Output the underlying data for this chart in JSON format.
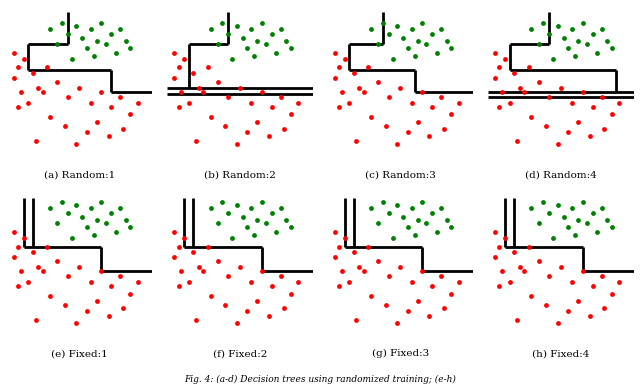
{
  "fig_width": 6.4,
  "fig_height": 3.88,
  "dpi": 100,
  "subtitles": [
    "(a) Random:1",
    "(b) Random:2",
    "(c) Random:3",
    "(d) Random:4",
    "(e) Fixed:1",
    "(f) Fixed:2",
    "(g) Fixed:3",
    "(h) Fixed:4"
  ],
  "caption": "Fig. 4: (a-d) Decision trees using randomized training; (e-h)",
  "lw": 2.0,
  "dot_size": 12,
  "green_x": [
    0.3,
    0.38,
    0.35,
    0.42,
    0.48,
    0.52,
    0.55,
    0.58,
    0.62,
    0.65,
    0.68,
    0.72,
    0.75,
    0.78,
    0.82,
    0.85,
    0.45,
    0.6
  ],
  "green_y": [
    0.88,
    0.92,
    0.78,
    0.85,
    0.9,
    0.82,
    0.75,
    0.88,
    0.8,
    0.92,
    0.78,
    0.85,
    0.72,
    0.88,
    0.8,
    0.75,
    0.68,
    0.7
  ],
  "red_x": [
    0.05,
    0.08,
    0.12,
    0.05,
    0.1,
    0.18,
    0.22,
    0.28,
    0.08,
    0.15,
    0.25,
    0.35,
    0.42,
    0.5,
    0.58,
    0.65,
    0.72,
    0.78,
    0.85,
    0.9,
    0.3,
    0.4,
    0.55,
    0.62,
    0.7,
    0.8,
    0.2,
    0.48
  ],
  "red_y": [
    0.72,
    0.62,
    0.68,
    0.55,
    0.45,
    0.58,
    0.48,
    0.62,
    0.35,
    0.38,
    0.45,
    0.52,
    0.42,
    0.48,
    0.38,
    0.45,
    0.35,
    0.42,
    0.3,
    0.38,
    0.28,
    0.22,
    0.18,
    0.25,
    0.15,
    0.2,
    0.12,
    0.1
  ],
  "boundary_a": {
    "segments": [
      [
        [
          0.42,
          0.42
        ],
        [
          1.0,
          0.78
        ]
      ],
      [
        [
          0.15,
          0.42
        ],
        [
          0.78,
          0.78
        ]
      ],
      [
        [
          0.15,
          0.15
        ],
        [
          0.78,
          0.6
        ]
      ],
      [
        [
          0.15,
          0.72
        ],
        [
          0.6,
          0.6
        ]
      ],
      [
        [
          0.72,
          0.72
        ],
        [
          0.6,
          0.45
        ]
      ],
      [
        [
          0.72,
          1.0
        ],
        [
          0.45,
          0.45
        ]
      ]
    ]
  },
  "boundary_b": {
    "segments": [
      [
        [
          0.42,
          0.42
        ],
        [
          1.0,
          0.78
        ]
      ],
      [
        [
          0.15,
          0.42
        ],
        [
          0.78,
          0.78
        ]
      ],
      [
        [
          0.15,
          0.15
        ],
        [
          0.78,
          0.48
        ]
      ],
      [
        [
          0.0,
          1.0
        ],
        [
          0.48,
          0.48
        ]
      ],
      [
        [
          0.0,
          1.0
        ],
        [
          0.44,
          0.44
        ]
      ]
    ]
  },
  "boundary_c": {
    "segments": [
      [
        [
          0.38,
          0.38
        ],
        [
          1.0,
          0.78
        ]
      ],
      [
        [
          0.15,
          0.38
        ],
        [
          0.78,
          0.78
        ]
      ],
      [
        [
          0.15,
          0.15
        ],
        [
          0.78,
          0.6
        ]
      ],
      [
        [
          0.15,
          0.6
        ],
        [
          0.6,
          0.6
        ]
      ],
      [
        [
          0.6,
          0.6
        ],
        [
          0.6,
          0.45
        ]
      ],
      [
        [
          0.6,
          1.0
        ],
        [
          0.45,
          0.45
        ]
      ]
    ]
  },
  "boundary_d": {
    "segments": [
      [
        [
          0.42,
          0.42
        ],
        [
          1.0,
          0.78
        ]
      ],
      [
        [
          0.15,
          0.42
        ],
        [
          0.78,
          0.78
        ]
      ],
      [
        [
          0.15,
          0.15
        ],
        [
          0.78,
          0.6
        ]
      ],
      [
        [
          0.15,
          0.88
        ],
        [
          0.6,
          0.6
        ]
      ],
      [
        [
          0.88,
          0.88
        ],
        [
          0.6,
          0.45
        ]
      ],
      [
        [
          0.0,
          1.0
        ],
        [
          0.45,
          0.45
        ]
      ],
      [
        [
          0.0,
          1.0
        ],
        [
          0.42,
          0.42
        ]
      ]
    ]
  },
  "boundary_fixed": {
    "bars": [
      [
        [
          0.12,
          0.12
        ],
        [
          0.62,
          0.95
        ]
      ],
      [
        [
          0.18,
          0.18
        ],
        [
          0.62,
          0.95
        ]
      ]
    ],
    "staircase": [
      [
        [
          0.12,
          0.65
        ],
        [
          0.62,
          0.62
        ]
      ],
      [
        [
          0.65,
          0.65
        ],
        [
          0.62,
          0.45
        ]
      ],
      [
        [
          0.65,
          1.0
        ],
        [
          0.45,
          0.45
        ]
      ]
    ]
  }
}
